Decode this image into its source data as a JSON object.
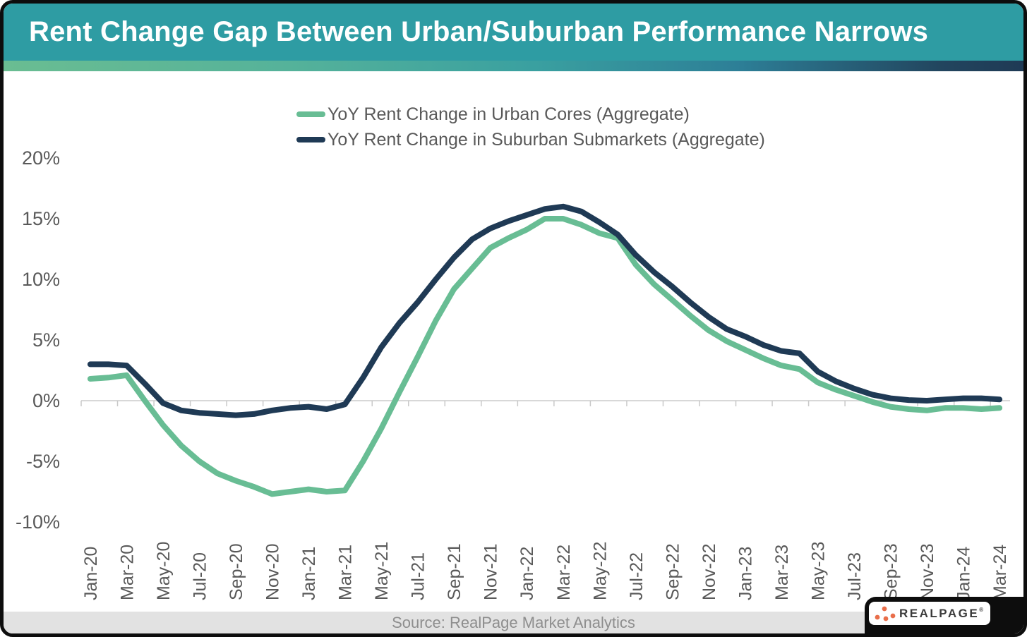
{
  "header": {
    "note": "teal title bar"
  },
  "chart_data": {
    "type": "line",
    "title": "Rent Change Gap Between Urban/Suburban Performance Narrows",
    "x": [
      "Jan-20",
      "Feb-20",
      "Mar-20",
      "Apr-20",
      "May-20",
      "Jun-20",
      "Jul-20",
      "Aug-20",
      "Sep-20",
      "Oct-20",
      "Nov-20",
      "Dec-20",
      "Jan-21",
      "Feb-21",
      "Mar-21",
      "Apr-21",
      "May-21",
      "Jun-21",
      "Jul-21",
      "Aug-21",
      "Sep-21",
      "Oct-21",
      "Nov-21",
      "Dec-21",
      "Jan-22",
      "Feb-22",
      "Mar-22",
      "Apr-22",
      "May-22",
      "Jun-22",
      "Jul-22",
      "Aug-22",
      "Sep-22",
      "Oct-22",
      "Nov-22",
      "Dec-22",
      "Jan-23",
      "Feb-23",
      "Mar-23",
      "Apr-23",
      "May-23",
      "Jun-23",
      "Jul-23",
      "Aug-23",
      "Sep-23",
      "Oct-23",
      "Nov-23",
      "Dec-23",
      "Jan-24",
      "Feb-24",
      "Mar-24"
    ],
    "series": [
      {
        "name": "YoY Rent Change in Urban Cores (Aggregate)",
        "color": "#68bd94",
        "values": [
          1.8,
          1.9,
          2.1,
          0.0,
          -2.0,
          -3.7,
          -5.0,
          -6.0,
          -6.6,
          -7.1,
          -7.7,
          -7.5,
          -7.3,
          -7.5,
          -7.4,
          -5.0,
          -2.3,
          0.7,
          3.6,
          6.6,
          9.2,
          10.9,
          12.6,
          13.4,
          14.1,
          15.0,
          15.0,
          14.5,
          13.8,
          13.4,
          11.2,
          9.6,
          8.3,
          7.0,
          5.8,
          4.9,
          4.2,
          3.5,
          2.9,
          2.6,
          1.5,
          0.9,
          0.4,
          -0.1,
          -0.5,
          -0.7,
          -0.8,
          -0.6,
          -0.6,
          -0.7,
          -0.6
        ]
      },
      {
        "name": "YoY Rent Change in Suburban Submarkets (Aggregate)",
        "color": "#1f3a55",
        "values": [
          3.0,
          3.0,
          2.9,
          1.4,
          -0.2,
          -0.8,
          -1.0,
          -1.1,
          -1.2,
          -1.1,
          -0.8,
          -0.6,
          -0.5,
          -0.7,
          -0.3,
          1.9,
          4.4,
          6.4,
          8.1,
          10.0,
          11.8,
          13.3,
          14.2,
          14.8,
          15.3,
          15.8,
          16.0,
          15.6,
          14.7,
          13.7,
          12.0,
          10.6,
          9.4,
          8.1,
          6.9,
          5.9,
          5.3,
          4.6,
          4.1,
          3.9,
          2.4,
          1.6,
          1.0,
          0.5,
          0.2,
          0.05,
          0.0,
          0.1,
          0.2,
          0.2,
          0.1
        ]
      }
    ],
    "y_ticks": [
      "20%",
      "15%",
      "10%",
      "5%",
      "0%",
      "-5%",
      "-10%"
    ],
    "y_tick_values": [
      20,
      15,
      10,
      5,
      0,
      -5,
      -10
    ],
    "x_tick_labels": [
      "Jan-20",
      "Mar-20",
      "May-20",
      "Jul-20",
      "Sep-20",
      "Nov-20",
      "Jan-21",
      "Mar-21",
      "May-21",
      "Jul-21",
      "Sep-21",
      "Nov-21",
      "Jan-22",
      "Mar-22",
      "May-22",
      "Jul-22",
      "Sep-22",
      "Nov-22",
      "Jan-23",
      "Mar-23",
      "May-23",
      "Jul-23",
      "Sep-23",
      "Nov-23",
      "Jan-24",
      "Mar-24"
    ],
    "ylim": [
      -10,
      20
    ],
    "grid": "zero-axis-line-only",
    "legend_position": "top-center",
    "x_label_rotation": -90
  },
  "footer": {
    "source_text": "Source: RealPage Market Analytics"
  },
  "logo": {
    "text": "REALPAGE",
    "mark": "®",
    "dot_color": "#e96e4a"
  },
  "colors": {
    "header_bar": "#2e9ca3",
    "gradient_left": "#6abd92",
    "gradient_right": "#1f3a55",
    "urban_line": "#68bd94",
    "suburban_line": "#1f3a55",
    "axis_text": "#595959",
    "zero_line": "#d8d8d8",
    "footer_bg": "#e2e2e2",
    "card_border": "#0d0d0d"
  }
}
